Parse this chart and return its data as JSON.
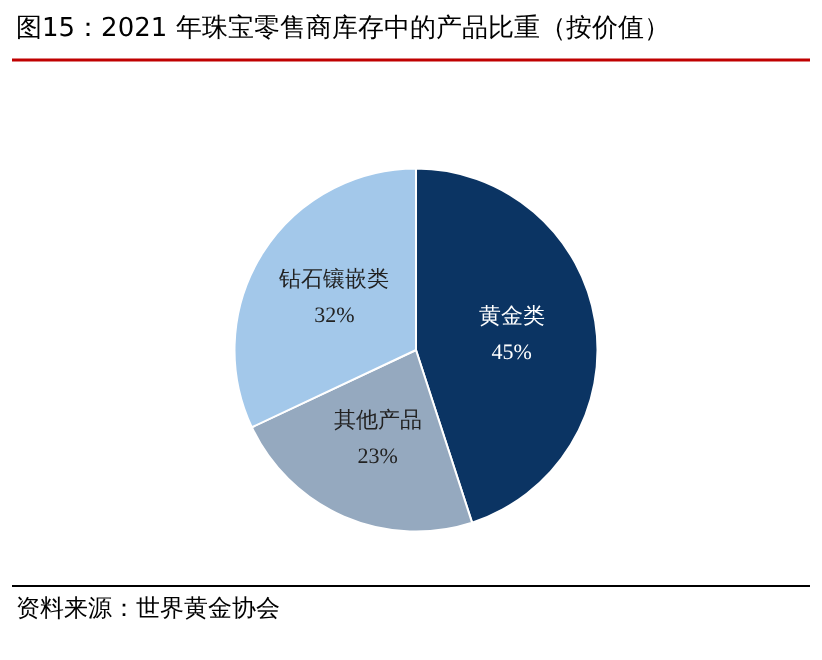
{
  "chart_data": {
    "type": "pie",
    "title": "图15：2021 年珠宝零售商库存中的产品比重（按价值）",
    "categories": [
      "黄金类",
      "其他产品",
      "钻石镶嵌类"
    ],
    "values": [
      45,
      23,
      32
    ],
    "colors": [
      "#0b3463",
      "#95a9bf",
      "#a3c8ea"
    ],
    "value_labels": [
      "45%",
      "23%",
      "32%"
    ],
    "annotations": [
      "资料来源：世界黄金协会"
    ]
  }
}
